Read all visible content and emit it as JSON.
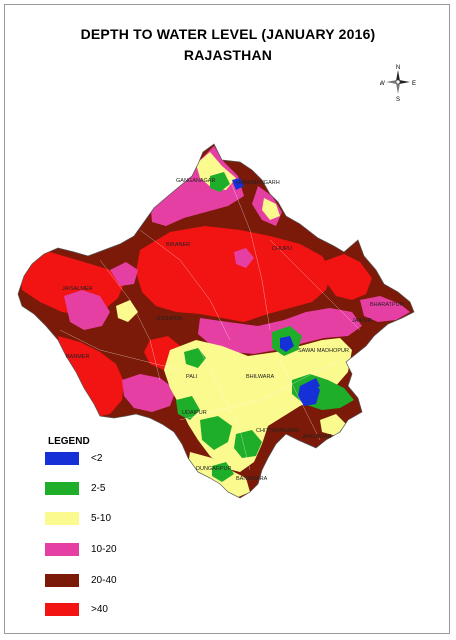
{
  "title": {
    "line1": "DEPTH TO WATER LEVEL (JANUARY 2016)",
    "line2": "RAJASTHAN"
  },
  "compass": {
    "n": "N",
    "s": "S",
    "e": "E",
    "w": "W"
  },
  "legend": {
    "title": "LEGEND",
    "items": [
      {
        "label": "<2",
        "color": "#1630d8"
      },
      {
        "label": "2-5",
        "color": "#1fae2a"
      },
      {
        "label": "5-10",
        "color": "#fbfa8e"
      },
      {
        "label": "10-20",
        "color": "#e63fa3"
      },
      {
        "label": "20-40",
        "color": "#7b1a08"
      },
      {
        "label": ">40",
        "color": "#f21313"
      }
    ]
  },
  "map_labels": {
    "ganganagar": "GANGANAGAR",
    "hanumangarh": "HANUMANGARH",
    "bikaner": "BIKANER",
    "churu": "CHURU",
    "jaisalmer": "JAISALMER",
    "jodhpur": "JODHPUR",
    "jaipur": "JAIPUR",
    "pali": "PALI",
    "bhilwara": "BHILWARA",
    "sawaimadhopur": "SAWAI MADHOPUR",
    "udaipur": "UDAIPUR",
    "chittaurgarh": "CHITTAURGARH",
    "dungarpur": "DUNGARPUR",
    "banswara": "BANSWARA",
    "barmer": "BARMER",
    "jhalawar": "JHALAWAR",
    "bharatpur": "BHARATPUR"
  }
}
